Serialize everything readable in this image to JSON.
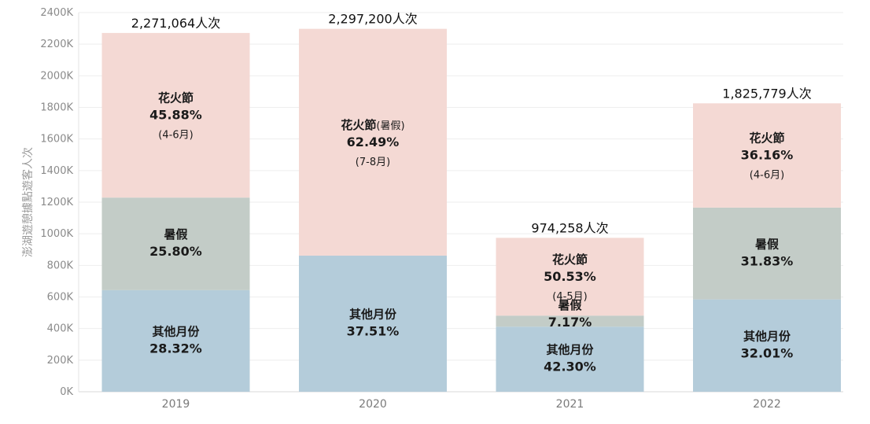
{
  "chart_data": {
    "type": "bar",
    "stacked": true,
    "ylabel": "澎湖遊憩據點遊客人次",
    "xlabel": "",
    "ylim": [
      0,
      2400000
    ],
    "y_ticks": [
      "0K",
      "200K",
      "400K",
      "600K",
      "800K",
      "1000K",
      "1200K",
      "1400K",
      "1600K",
      "1800K",
      "2000K",
      "2200K",
      "2400K"
    ],
    "y_tick_values": [
      0,
      200000,
      400000,
      600000,
      800000,
      1000000,
      1200000,
      1400000,
      1600000,
      1800000,
      2000000,
      2200000,
      2400000
    ],
    "grid": true,
    "colors": {
      "other": "#b4ccda",
      "summer": "#c3ccc7",
      "fireworks": "#f4d9d4"
    },
    "categories": [
      "2019",
      "2020",
      "2021",
      "2022"
    ],
    "totals": [
      2271064,
      2297200,
      974258,
      1825779
    ],
    "total_labels": [
      "2,271,064人次",
      "2,297,200人次",
      "974,258人次",
      "1,825,779人次"
    ],
    "series": [
      {
        "key": "other",
        "values": [
          643066,
          861668,
          412111,
          584428
        ]
      },
      {
        "key": "summer",
        "values": [
          585935,
          0,
          69855,
          581145
        ]
      },
      {
        "key": "fireworks",
        "values": [
          1042063,
          1435532,
          492292,
          660206
        ]
      }
    ],
    "bars": [
      {
        "segments": [
          {
            "key": "other",
            "title": "其他月份",
            "pct": "28.32%",
            "sub": ""
          },
          {
            "key": "summer",
            "title": "暑假",
            "pct": "25.80%",
            "sub": ""
          },
          {
            "key": "fireworks",
            "title": "花火節",
            "title_suffix": "",
            "pct": "45.88%",
            "sub": "(4-6月)"
          }
        ]
      },
      {
        "segments": [
          {
            "key": "other",
            "title": "其他月份",
            "pct": "37.51%",
            "sub": ""
          },
          {
            "key": "fireworks",
            "title": "花火節",
            "title_suffix": "(暑假)",
            "pct": "62.49%",
            "sub": "(7-8月)"
          }
        ]
      },
      {
        "segments": [
          {
            "key": "other",
            "title": "其他月份",
            "pct": "42.30%",
            "sub": ""
          },
          {
            "key": "summer",
            "title": "暑假",
            "pct": "7.17%",
            "sub": ""
          },
          {
            "key": "fireworks",
            "title": "花火節",
            "title_suffix": "",
            "pct": "50.53%",
            "sub": "(4-5月)"
          }
        ]
      },
      {
        "segments": [
          {
            "key": "other",
            "title": "其他月份",
            "pct": "32.01%",
            "sub": ""
          },
          {
            "key": "summer",
            "title": "暑假",
            "pct": "31.83%",
            "sub": ""
          },
          {
            "key": "fireworks",
            "title": "花火節",
            "title_suffix": "",
            "pct": "36.16%",
            "sub": "(4-6月)"
          }
        ]
      }
    ]
  }
}
